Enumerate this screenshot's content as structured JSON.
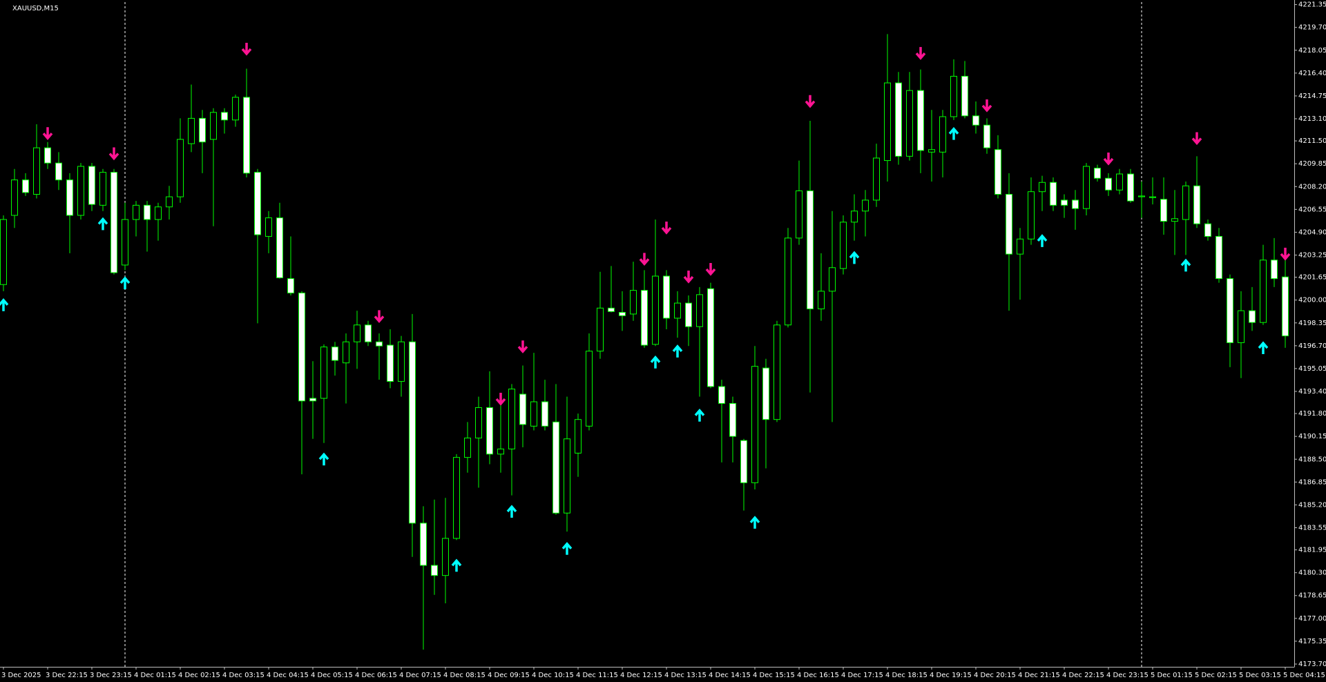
{
  "chart_data": {
    "type": "candlestick",
    "title": "XAUUSD,M15",
    "categories": [
      "3 Dec 2025",
      null,
      null,
      null,
      "3 Dec 22:15",
      null,
      null,
      null,
      "3 Dec 23:15",
      null,
      null,
      null,
      "4 Dec 01:15",
      null,
      null,
      null,
      "4 Dec 02:15",
      null,
      null,
      null,
      "4 Dec 03:15",
      null,
      null,
      null,
      "4 Dec 04:15",
      null,
      null,
      null,
      "4 Dec 05:15",
      null,
      null,
      null,
      "4 Dec 06:15",
      null,
      null,
      null,
      "4 Dec 07:15",
      null,
      null,
      null,
      "4 Dec 08:15",
      null,
      null,
      null,
      "4 Dec 09:15",
      null,
      null,
      null,
      "4 Dec 10:15",
      null,
      null,
      null,
      "4 Dec 11:15",
      null,
      null,
      null,
      "4 Dec 12:15",
      null,
      null,
      null,
      "4 Dec 13:15",
      null,
      null,
      null,
      "4 Dec 14:15",
      null,
      null,
      null,
      "4 Dec 15:15",
      null,
      null,
      null,
      "4 Dec 16:15",
      null,
      null,
      null,
      "4 Dec 17:15",
      null,
      null,
      null,
      "4 Dec 18:15",
      null,
      null,
      null,
      "4 Dec 19:15",
      null,
      null,
      null,
      "4 Dec 20:15",
      null,
      null,
      null,
      "4 Dec 21:15",
      null,
      null,
      null,
      "4 Dec 22:15",
      null,
      null,
      null,
      "4 Dec 23:15",
      null,
      null,
      null,
      "5 Dec 01:15",
      null,
      null,
      null,
      "5 Dec 02:15",
      null,
      null,
      null,
      "5 Dec 03:15",
      null,
      null,
      null,
      "5 Dec 04:15"
    ],
    "open": [
      4201.12,
      4206.12,
      4208.68,
      4207.64,
      4211.0,
      4209.9,
      4208.68,
      4206.12,
      4209.66,
      4206.85,
      4209.23,
      4202.53,
      4205.82,
      4206.85,
      4205.82,
      4206.73,
      4207.46,
      4211.3,
      4213.13,
      4211.61,
      4213.56,
      4213.01,
      4214.65,
      4209.23,
      4204.6,
      4205.94,
      4201.55,
      4200.51,
      4192.9,
      4192.9,
      4196.61,
      4195.46,
      4196.98,
      4198.2,
      4196.98,
      4196.74,
      4194.12,
      4196.98,
      4183.88,
      4180.83,
      4180.1,
      4182.78,
      4188.63,
      4190.03,
      4192.23,
      4188.87,
      4189.24,
      4193.2,
      4190.89,
      4192.65,
      4191.19,
      4184.61,
      4188.94,
      4190.89,
      4196.31,
      4199.42,
      4199.11,
      4198.99,
      4200.7,
      4196.8,
      4201.73,
      4198.69,
      4199.78,
      4198.08,
      4200.82,
      4193.75,
      4192.53,
      4189.85,
      4186.8,
      4195.09,
      4191.37,
      4198.2,
      4204.48,
      4207.89,
      4199.36,
      4200.64,
      4202.28,
      4205.63,
      4206.43,
      4207.22,
      4210.08,
      4215.69,
      4210.39,
      4215.14,
      4210.69,
      4210.69,
      4213.25,
      4216.17,
      4213.31,
      4212.64,
      4210.87,
      4207.64,
      4203.32,
      4204.41,
      4207.83,
      4208.5,
      4207.22,
      4207.22,
      4206.61,
      4209.53,
      4208.8,
      4207.95,
      4209.11,
      4207.46,
      4207.4,
      4207.28,
      4205.69,
      4205.82,
      4208.25,
      4205.51,
      4204.6,
      4201.55,
      4196.92,
      4199.23,
      4198.38,
      4202.89,
      4201.67
    ],
    "high": [
      4206.12,
      4209.47,
      4209.17,
      4212.7,
      4211.42,
      4210.69,
      4209.17,
      4209.9,
      4209.9,
      4209.47,
      4209.47,
      4207.03,
      4207.16,
      4207.16,
      4207.03,
      4208.25,
      4213.13,
      4215.57,
      4213.74,
      4213.86,
      4213.86,
      4214.84,
      4216.72,
      4209.47,
      4206.43,
      4207.03,
      4204.6,
      4200.64,
      4195.58,
      4196.8,
      4196.98,
      4197.59,
      4199.23,
      4198.5,
      4197.59,
      4197.89,
      4197.41,
      4198.99,
      4185.1,
      4185.58,
      4185.71,
      4188.87,
      4191.19,
      4193.02,
      4194.85,
      4192.41,
      4193.93,
      4195.27,
      4196.19,
      4194.24,
      4193.93,
      4193.02,
      4191.8,
      4197.59,
      4202.04,
      4202.46,
      4200.64,
      4202.77,
      4202.16,
      4205.82,
      4202.16,
      4200.64,
      4200.33,
      4200.94,
      4201.25,
      4194.24,
      4193.02,
      4189.97,
      4196.68,
      4195.76,
      4198.5,
      4205.21,
      4210.08,
      4212.95,
      4203.38,
      4206.43,
      4206.12,
      4207.64,
      4207.95,
      4211.3,
      4219.22,
      4216.48,
      4216.48,
      4216.66,
      4213.74,
      4213.74,
      4217.39,
      4217.27,
      4214.35,
      4213.13,
      4211.91,
      4209.17,
      4205.21,
      4208.86,
      4208.98,
      4208.86,
      4207.64,
      4207.95,
      4209.9,
      4209.78,
      4209.17,
      4209.47,
      4209.47,
      4208.56,
      4208.86,
      4208.86,
      4207.95,
      4208.56,
      4210.39,
      4205.82,
      4205.21,
      4201.85,
      4200.64,
      4200.94,
      4203.99,
      4204.48,
      4203.38
    ],
    "low": [
      4200.64,
      4205.21,
      4207.52,
      4207.34,
      4209.47,
      4207.95,
      4203.38,
      4205.82,
      4206.43,
      4206.43,
      4201.85,
      4202.16,
      4204.6,
      4203.5,
      4204.29,
      4205.82,
      4207.03,
      4210.69,
      4209.17,
      4205.33,
      4212.03,
      4212.52,
      4208.86,
      4198.32,
      4203.38,
      4201.55,
      4200.33,
      4187.41,
      4189.97,
      4189.67,
      4194.54,
      4192.53,
      4195.03,
      4196.68,
      4194.24,
      4193.63,
      4193.02,
      4181.44,
      4174.74,
      4178.7,
      4178.09,
      4182.66,
      4187.53,
      4186.44,
      4188.14,
      4187.53,
      4185.89,
      4189.36,
      4190.58,
      4190.58,
      4184.49,
      4183.27,
      4187.23,
      4190.58,
      4195.76,
      4199.11,
      4197.77,
      4198.5,
      4196.55,
      4196.68,
      4197.89,
      4197.28,
      4196.68,
      4193.02,
      4193.63,
      4188.27,
      4188.27,
      4184.79,
      4186.32,
      4187.84,
      4191.19,
      4198.02,
      4203.99,
      4193.32,
      4198.5,
      4191.19,
      4201.85,
      4204.29,
      4204.6,
      4206.73,
      4208.56,
      4209.78,
      4210.08,
      4209.17,
      4208.56,
      4208.86,
      4213.01,
      4213.13,
      4212.03,
      4210.57,
      4207.34,
      4199.23,
      4200.03,
      4203.99,
      4206.43,
      4206.43,
      4205.94,
      4205.08,
      4206.12,
      4208.56,
      4207.52,
      4207.64,
      4207.03,
      4205.94,
      4206.91,
      4204.72,
      4203.26,
      4203.26,
      4205.21,
      4204.29,
      4201.25,
      4195.15,
      4194.36,
      4197.77,
      4198.2,
      4200.94,
      4196.55
    ],
    "close": [
      4205.82,
      4208.68,
      4207.77,
      4211.0,
      4209.9,
      4208.68,
      4206.12,
      4209.66,
      4206.91,
      4209.23,
      4201.98,
      4205.82,
      4206.85,
      4205.82,
      4206.73,
      4207.46,
      4211.61,
      4213.13,
      4211.42,
      4213.56,
      4213.01,
      4214.65,
      4209.17,
      4204.72,
      4205.94,
      4201.61,
      4200.51,
      4192.71,
      4192.71,
      4196.61,
      4195.64,
      4196.98,
      4198.2,
      4196.98,
      4196.68,
      4194.12,
      4196.98,
      4183.88,
      4180.83,
      4180.1,
      4182.78,
      4188.63,
      4190.03,
      4192.23,
      4188.87,
      4189.24,
      4193.57,
      4191.01,
      4192.65,
      4190.89,
      4184.61,
      4189.97,
      4191.37,
      4196.31,
      4199.42,
      4199.17,
      4198.87,
      4200.7,
      4196.74,
      4201.73,
      4198.69,
      4199.78,
      4198.08,
      4200.39,
      4193.75,
      4192.53,
      4190.15,
      4186.8,
      4195.21,
      4191.37,
      4198.2,
      4204.48,
      4207.89,
      4199.36,
      4200.64,
      4202.34,
      4205.63,
      4206.43,
      4207.22,
      4210.26,
      4215.69,
      4210.39,
      4215.14,
      4210.81,
      4210.87,
      4213.25,
      4216.17,
      4213.31,
      4212.64,
      4211.0,
      4207.64,
      4203.32,
      4204.41,
      4207.83,
      4208.5,
      4206.85,
      4206.85,
      4206.61,
      4209.66,
      4208.8,
      4207.95,
      4209.11,
      4207.16,
      4207.52,
      4207.46,
      4205.69,
      4205.88,
      4208.25,
      4205.51,
      4204.6,
      4201.55,
      4196.92,
      4199.23,
      4198.38,
      4202.89,
      4201.55,
      4197.41
    ],
    "buy_signals": [
      4199.6,
      null,
      null,
      null,
      null,
      null,
      null,
      null,
      null,
      4205.45,
      null,
      4201.18,
      null,
      null,
      null,
      null,
      null,
      null,
      null,
      null,
      null,
      null,
      null,
      null,
      null,
      null,
      null,
      null,
      null,
      4188.45,
      null,
      null,
      null,
      null,
      null,
      null,
      null,
      null,
      null,
      null,
      null,
      4180.77,
      null,
      null,
      null,
      null,
      4184.67,
      null,
      null,
      null,
      null,
      4181.99,
      null,
      null,
      null,
      null,
      null,
      null,
      null,
      4195.46,
      null,
      4196.25,
      null,
      4191.62,
      null,
      null,
      null,
      null,
      4183.88,
      null,
      null,
      null,
      null,
      null,
      null,
      null,
      null,
      4203.01,
      null,
      null,
      null,
      null,
      null,
      null,
      null,
      null,
      4211.97,
      null,
      null,
      null,
      null,
      null,
      null,
      null,
      4204.23,
      null,
      null,
      null,
      null,
      null,
      null,
      null,
      null,
      null,
      null,
      null,
      null,
      4202.46,
      null,
      null,
      null,
      null,
      null,
      null,
      4196.49,
      null,
      null
    ],
    "sell_signals": [
      null,
      null,
      null,
      null,
      4212.09,
      null,
      null,
      null,
      null,
      null,
      4210.63,
      null,
      null,
      null,
      null,
      null,
      null,
      null,
      null,
      null,
      null,
      null,
      4218.19,
      null,
      null,
      null,
      null,
      null,
      null,
      null,
      null,
      null,
      null,
      null,
      4198.87,
      null,
      null,
      null,
      null,
      null,
      null,
      null,
      null,
      null,
      null,
      4192.9,
      null,
      4196.68,
      null,
      null,
      null,
      null,
      null,
      null,
      null,
      null,
      null,
      null,
      4203.01,
      null,
      4205.27,
      null,
      4201.73,
      null,
      4202.28,
      null,
      null,
      null,
      null,
      null,
      null,
      null,
      null,
      4214.41,
      null,
      null,
      null,
      null,
      null,
      null,
      null,
      null,
      null,
      4217.88,
      null,
      null,
      null,
      null,
      null,
      4214.1,
      null,
      null,
      null,
      null,
      null,
      null,
      null,
      null,
      null,
      null,
      4210.26,
      null,
      null,
      null,
      null,
      null,
      null,
      null,
      4211.73,
      null,
      null,
      null,
      null,
      null,
      null,
      null,
      4203.38
    ],
    "ylim": [
      4173.5,
      4221.53
    ],
    "yticks": [
      {
        "value": 4173.7,
        "label": "4173.70"
      },
      4175.35,
      {
        "value": 4177,
        "label": "4177.00"
      },
      4178.65,
      {
        "value": 4180.3,
        "label": "4180.30"
      },
      4181.95,
      4183.55,
      {
        "value": 4185.2,
        "label": "4185.20"
      },
      4186.85,
      {
        "value": 4188.5,
        "label": "4188.50"
      },
      4190.15,
      {
        "value": 4191.8,
        "label": "4191.80"
      },
      {
        "value": 4193.4,
        "label": "4193.40"
      },
      4195.05,
      {
        "value": 4196.7,
        "label": "4196.70"
      },
      4198.35,
      {
        "value": 4200,
        "label": "4200.00"
      },
      4201.65,
      4203.25,
      {
        "value": 4204.9,
        "label": "4204.90"
      },
      4206.55,
      {
        "value": 4208.2,
        "label": "4208.20"
      },
      4209.85,
      {
        "value": 4211.5,
        "label": "4211.50"
      },
      {
        "value": 4213.1,
        "label": "4213.10"
      },
      4214.75,
      {
        "value": 4216.4,
        "label": "4216.40"
      },
      4218.05,
      {
        "value": 4219.7,
        "label": "4219.70"
      },
      4221.35
    ],
    "colors": {
      "bull_body": "#000000",
      "bear_body": "#ffffff",
      "candle_line": "#00ff00",
      "buy_signal": "#00ffff",
      "sell_signal": "#ff1493"
    }
  }
}
